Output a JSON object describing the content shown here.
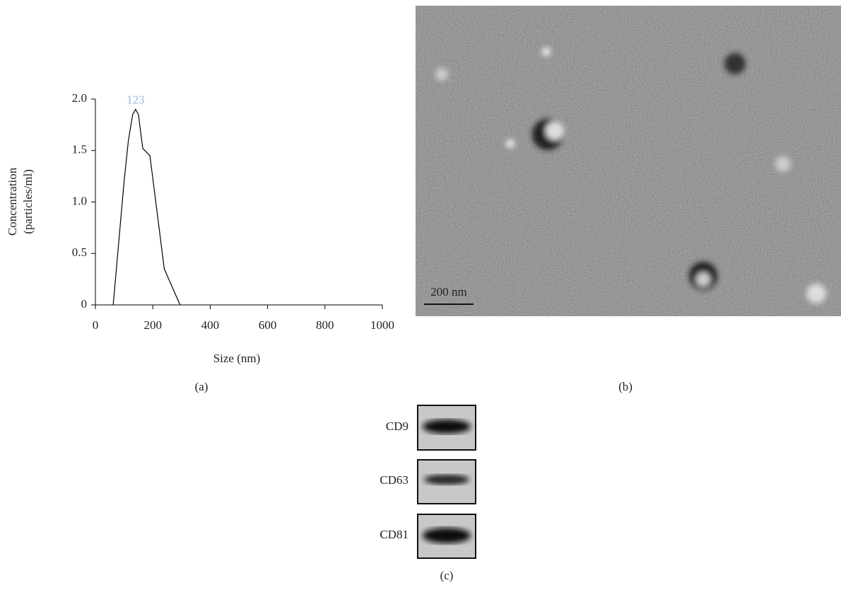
{
  "chart_data": {
    "type": "line",
    "x": [
      62,
      100,
      115,
      130,
      140,
      150,
      165,
      190,
      240,
      295
    ],
    "values": [
      0,
      1.2,
      1.6,
      1.85,
      1.9,
      1.85,
      1.52,
      1.45,
      0.35,
      0
    ],
    "color": "#000000",
    "xlim": [
      0,
      1000
    ],
    "ylim": [
      0,
      2
    ],
    "xticks": [
      0,
      200,
      400,
      600,
      800,
      1000
    ],
    "yticks": [
      0,
      0.5,
      {
        "value": 1,
        "label": "1.0"
      },
      1.5,
      {
        "value": 2,
        "label": "2.0"
      }
    ],
    "xlabel": "Size (nm)",
    "ylabel": [
      "Concentration",
      "(particles/ml)"
    ],
    "annotation": "123",
    "annotation_color": "#9cb8dc",
    "panel_label": "(a)"
  },
  "image": {
    "scale_bar": "200 nm",
    "panel_label": "(b)"
  },
  "blot": {
    "labels": [
      "CD9",
      "CD63",
      "CD81"
    ],
    "panel_label": "(c)"
  }
}
